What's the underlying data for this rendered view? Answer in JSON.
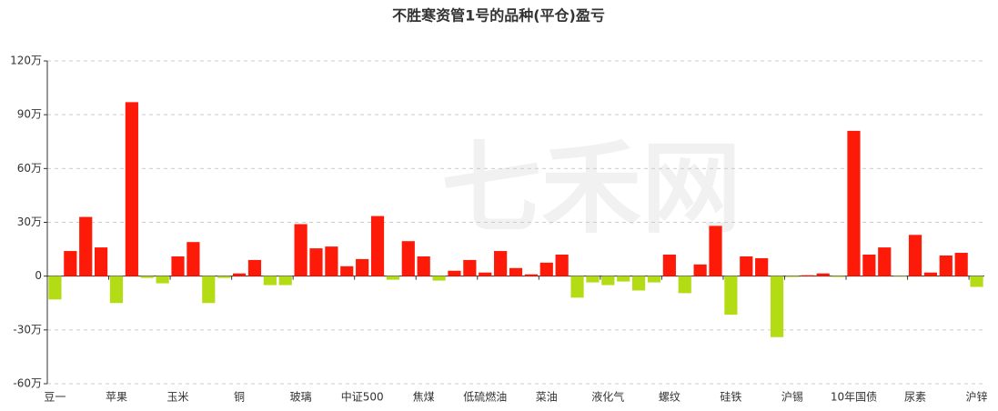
{
  "chart_data": {
    "type": "bar",
    "title": "不胜寒资管1号的品种(平仓)盈亏",
    "watermark": "七禾网",
    "categories": [
      "豆一",
      null,
      null,
      null,
      "苹果",
      null,
      null,
      null,
      "玉米",
      null,
      null,
      null,
      "铜",
      null,
      null,
      null,
      "玻璃",
      null,
      null,
      null,
      "中证500",
      null,
      null,
      null,
      "焦煤",
      null,
      null,
      null,
      "低硫燃油",
      null,
      null,
      null,
      "菜油",
      null,
      null,
      null,
      "液化气",
      null,
      null,
      null,
      "螺纹",
      null,
      null,
      null,
      "硅铁",
      null,
      null,
      null,
      "沪锡",
      null,
      null,
      null,
      "10年国债",
      null,
      null,
      null,
      "尿素",
      null,
      null,
      null,
      "沪锌"
    ],
    "values": [
      -13,
      14,
      33,
      16,
      -15,
      97,
      -1,
      -4,
      11,
      19,
      -15,
      -1,
      1.5,
      9,
      -5,
      -5,
      29,
      15.5,
      16.5,
      5.5,
      9.5,
      33.5,
      -2,
      19.5,
      11,
      -2.5,
      3,
      9,
      2,
      14,
      4.5,
      1,
      7.5,
      12,
      -12,
      -3.5,
      -5,
      -3,
      -8,
      -3.5,
      12,
      -9.5,
      6.5,
      28,
      -21.5,
      11,
      10,
      -34,
      -0.5,
      0.5,
      1.5,
      -0.5,
      81,
      12,
      16,
      -0.3,
      23,
      2,
      11.5,
      13,
      -6
    ],
    "positive_color": "#fe1a08",
    "negative_color": "#b3dc14",
    "ylim": [
      -60,
      120
    ],
    "yticks": [
      {
        "value": -60,
        "label": "-60万"
      },
      {
        "value": -30,
        "label": "-30万"
      },
      0,
      {
        "value": 30,
        "label": "30万"
      },
      {
        "value": 60,
        "label": "60万"
      },
      {
        "value": 90,
        "label": "90万"
      },
      {
        "value": 120,
        "label": "120万"
      }
    ],
    "grid": true
  }
}
